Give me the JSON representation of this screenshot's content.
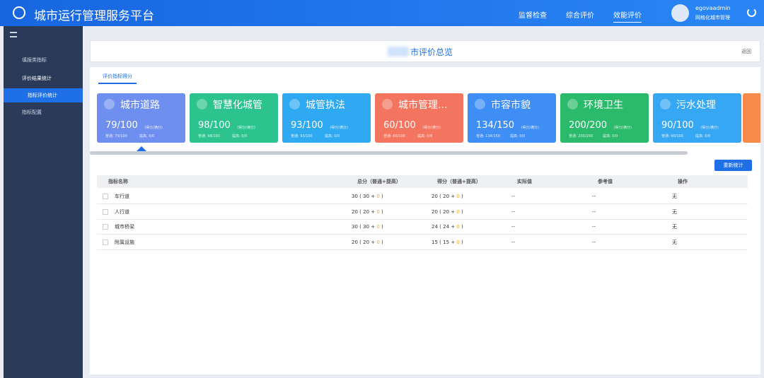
{
  "header": {
    "title": "城市运行管理服务平台",
    "nav": [
      "监督检查",
      "综合评价",
      "效能评价"
    ],
    "user": {
      "name": "egovaadmin",
      "role": "网格化城市管理"
    }
  },
  "sidebar": {
    "items": [
      "填报类指标",
      "评价结果统计",
      "指标评价统计",
      "指标配置"
    ]
  },
  "page": {
    "title": "市评价总览",
    "back": "返回",
    "tab": "评价指标得分",
    "button": "重新统计"
  },
  "cards": [
    {
      "name": "城市道路",
      "score": "79/100",
      "unit": "(得分/满分)",
      "normal": "普通: 79/100",
      "raise": "提高: 0/0",
      "color": "#6f8ff0"
    },
    {
      "name": "智慧化城管",
      "score": "98/100",
      "unit": "(得分/满分)",
      "normal": "普通: 98/100",
      "raise": "提高: 0/0",
      "color": "#2cc38f"
    },
    {
      "name": "城管执法",
      "score": "93/100",
      "unit": "(得分/满分)",
      "normal": "普通: 93/100",
      "raise": "提高: 0/0",
      "color": "#2fa9f2"
    },
    {
      "name": "城市管理...",
      "score": "60/100",
      "unit": "(得分/满分)",
      "normal": "普通: 60/100",
      "raise": "提高: 0/0",
      "color": "#f37560"
    },
    {
      "name": "市容市貌",
      "score": "134/150",
      "unit": "(得分/满分)",
      "normal": "普通: 134/150",
      "raise": "提高: 0/0",
      "color": "#3e8ef5"
    },
    {
      "name": "环境卫生",
      "score": "200/200",
      "unit": "(得分/满分)",
      "normal": "普通: 200/200",
      "raise": "提高: 0/0",
      "color": "#2bba6b"
    },
    {
      "name": "污水处理",
      "score": "90/100",
      "unit": "(得分/满分)",
      "normal": "普通: 90/100",
      "raise": "提高: 0/0",
      "color": "#36a7f3"
    }
  ],
  "table": {
    "headers": [
      "指标名称",
      "总分（普通+提高）",
      "得分（普通+提高）",
      "实际值",
      "参考值",
      "操作"
    ],
    "rows": [
      {
        "name": "车行道",
        "total": {
          "sum": 30,
          "normal": 30,
          "raise": 0
        },
        "score": {
          "sum": 20,
          "normal": 20,
          "raise": 0
        },
        "actual": "--",
        "reference": "--",
        "op": "无"
      },
      {
        "name": "人行道",
        "total": {
          "sum": 20,
          "normal": 20,
          "raise": 0
        },
        "score": {
          "sum": 20,
          "normal": 20,
          "raise": 0
        },
        "actual": "--",
        "reference": "--",
        "op": "无"
      },
      {
        "name": "城市桥梁",
        "total": {
          "sum": 30,
          "normal": 30,
          "raise": 0
        },
        "score": {
          "sum": 24,
          "normal": 24,
          "raise": 0
        },
        "actual": "--",
        "reference": "--",
        "op": "无"
      },
      {
        "name": "附属设施",
        "total": {
          "sum": 20,
          "normal": 20,
          "raise": 0
        },
        "score": {
          "sum": 15,
          "normal": 15,
          "raise": 0
        },
        "actual": "--",
        "reference": "--",
        "op": "无"
      }
    ]
  }
}
